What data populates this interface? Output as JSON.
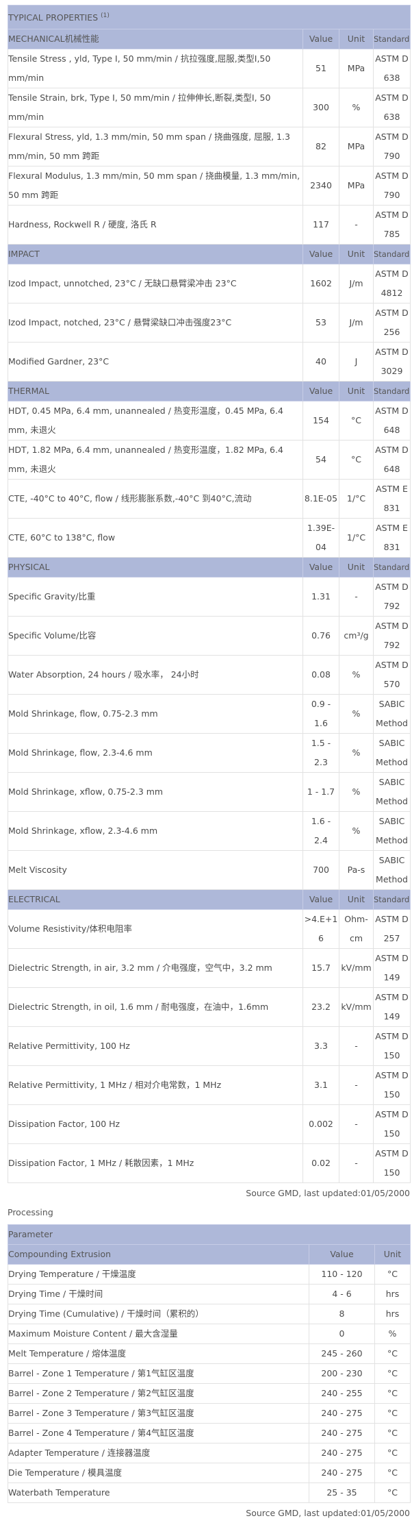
{
  "properties": {
    "title": "TYPICAL PROPERTIES",
    "title_note": "(1)",
    "col_value": "Value",
    "col_unit": "Unit",
    "col_standard": "Standard",
    "sections": [
      {
        "name": "MECHANICAL机械性能",
        "rows": [
          {
            "label": "Tensile Stress , yld, Type I, 50 mm/min / 抗拉强度,屈服,类型I,50 mm/min",
            "value": "51",
            "unit": "MPa",
            "standard": "ASTM D 638"
          },
          {
            "label": "Tensile Strain, brk, Type I, 50 mm/min / 拉伸伸长,断裂,类型I, 50 mm/min",
            "value": "300",
            "unit": "%",
            "standard": "ASTM D 638"
          },
          {
            "label": "Flexural Stress, yld, 1.3 mm/min, 50 mm span / 挠曲强度, 屈服, 1.3 mm/min, 50 mm 跨距",
            "value": "82",
            "unit": "MPa",
            "standard": "ASTM D 790"
          },
          {
            "label": "Flexural Modulus, 1.3 mm/min, 50 mm span / 挠曲模量, 1.3 mm/min, 50 mm 跨距",
            "value": "2340",
            "unit": "MPa",
            "standard": "ASTM D 790"
          },
          {
            "label": "Hardness, Rockwell R / 硬度, 洛氏 R",
            "value": "117",
            "unit": "-",
            "standard": "ASTM D 785"
          }
        ]
      },
      {
        "name": "IMPACT",
        "rows": [
          {
            "label": "Izod Impact, unnotched, 23°C / 无缺口悬臂梁冲击 23°C",
            "value": "1602",
            "unit": "J/m",
            "standard": "ASTM D 4812"
          },
          {
            "label": "Izod Impact, notched, 23°C / 悬臂梁缺口冲击强度23°C",
            "value": "53",
            "unit": "J/m",
            "standard": "ASTM D 256"
          },
          {
            "label": "Modified Gardner, 23°C",
            "value": "40",
            "unit": "J",
            "standard": "ASTM D 3029"
          }
        ]
      },
      {
        "name": "THERMAL",
        "rows": [
          {
            "label": "HDT, 0.45 MPa, 6.4 mm, unannealed / 热变形温度，0.45 MPa, 6.4 mm, 未退火",
            "value": "154",
            "unit": "°C",
            "standard": "ASTM D 648"
          },
          {
            "label": "HDT, 1.82 MPa, 6.4 mm, unannealed / 热变形温度，1.82 MPa, 6.4 mm, 未退火",
            "value": "54",
            "unit": "°C",
            "standard": "ASTM D 648"
          },
          {
            "label": "CTE, -40°C to 40°C, flow / 线形膨胀系数,-40°C 到40°C,流动",
            "value": "8.1E-05",
            "unit": "1/°C",
            "standard": "ASTM E 831"
          },
          {
            "label": "CTE, 60°C to 138°C, flow",
            "value": "1.39E-04",
            "unit": "1/°C",
            "standard": "ASTM E 831"
          }
        ]
      },
      {
        "name": "PHYSICAL",
        "rows": [
          {
            "label": "Specific Gravity/比重",
            "value": "1.31",
            "unit": "-",
            "standard": "ASTM D 792"
          },
          {
            "label": "Specific Volume/比容",
            "value": "0.76",
            "unit": "cm³/g",
            "standard": "ASTM D 792"
          },
          {
            "label": "Water Absorption, 24 hours / 吸水率， 24小时",
            "value": "0.08",
            "unit": "%",
            "standard": "ASTM D 570"
          },
          {
            "label": "Mold Shrinkage, flow, 0.75-2.3 mm",
            "value": "0.9 - 1.6",
            "unit": "%",
            "standard": "SABIC Method"
          },
          {
            "label": "Mold Shrinkage, flow, 2.3-4.6 mm",
            "value": "1.5 - 2.3",
            "unit": "%",
            "standard": "SABIC Method"
          },
          {
            "label": "Mold Shrinkage, xflow, 0.75-2.3 mm",
            "value": "1 - 1.7",
            "unit": "%",
            "standard": "SABIC Method"
          },
          {
            "label": "Mold Shrinkage, xflow, 2.3-4.6 mm",
            "value": "1.6 - 2.4",
            "unit": "%",
            "standard": "SABIC Method"
          },
          {
            "label": "Melt Viscosity",
            "value": "700",
            "unit": "Pa-s",
            "standard": "SABIC Method"
          }
        ]
      },
      {
        "name": "ELECTRICAL",
        "rows": [
          {
            "label": "Volume Resistivity/体积电阻率",
            "value": ">4.E+16",
            "unit": "Ohm-cm",
            "standard": "ASTM D 257"
          },
          {
            "label": "Dielectric Strength, in air, 3.2 mm / 介电强度，空气中，3.2 mm",
            "value": "15.7",
            "unit": "kV/mm",
            "standard": "ASTM D 149"
          },
          {
            "label": "Dielectric Strength, in oil, 1.6 mm / 耐电强度，在油中，1.6mm",
            "value": "23.2",
            "unit": "kV/mm",
            "standard": "ASTM D 149"
          },
          {
            "label": "Relative Permittivity, 100 Hz",
            "value": "3.3",
            "unit": "-",
            "standard": "ASTM D 150"
          },
          {
            "label": "Relative Permittivity, 1 MHz / 相对介电常数，1 MHz",
            "value": "3.1",
            "unit": "-",
            "standard": "ASTM D 150"
          },
          {
            "label": "Dissipation Factor, 100 Hz",
            "value": "0.002",
            "unit": "-",
            "standard": "ASTM D 150"
          },
          {
            "label": "Dissipation Factor, 1 MHz / 耗散因素，1 MHz",
            "value": "0.02",
            "unit": "-",
            "standard": "ASTM D 150"
          }
        ]
      }
    ],
    "source": "Source GMD, last updated:01/05/2000"
  },
  "processing": {
    "title": "Processing",
    "header": "Parameter",
    "section": "Compounding Extrusion",
    "col_value": "Value",
    "col_unit": "Unit",
    "rows": [
      {
        "label": "Drying Temperature / 干燥温度",
        "value": "110 - 120",
        "unit": "°C"
      },
      {
        "label": "Drying Time / 干燥时间",
        "value": "4 - 6",
        "unit": "hrs"
      },
      {
        "label": "Drying Time (Cumulative) / 干燥时间（累积的）",
        "value": "8",
        "unit": "hrs"
      },
      {
        "label": "Maximum Moisture Content / 最大含湿量",
        "value": "0",
        "unit": "%"
      },
      {
        "label": "Melt Temperature / 熔体温度",
        "value": "245 - 260",
        "unit": "°C"
      },
      {
        "label": "Barrel - Zone 1 Temperature / 第1气缸区温度",
        "value": "200 - 230",
        "unit": "°C"
      },
      {
        "label": "Barrel - Zone 2 Temperature / 第2气缸区温度",
        "value": "240 - 255",
        "unit": "°C"
      },
      {
        "label": "Barrel - Zone 3 Temperature / 第3气缸区温度",
        "value": "240 - 275",
        "unit": "°C"
      },
      {
        "label": "Barrel - Zone 4 Temperature / 第4气缸区温度",
        "value": "240 - 275",
        "unit": "°C"
      },
      {
        "label": "Adapter Temperature / 连接器温度",
        "value": "240 - 275",
        "unit": "°C"
      },
      {
        "label": "Die Temperature / 模具温度",
        "value": "240 - 275",
        "unit": "°C"
      },
      {
        "label": "Waterbath Temperature",
        "value": "25 - 35",
        "unit": "°C"
      }
    ],
    "source": "Source GMD, last updated:01/05/2000"
  },
  "colors": {
    "header_bg": "#aeb8d9",
    "text": "#4a4a4a"
  }
}
